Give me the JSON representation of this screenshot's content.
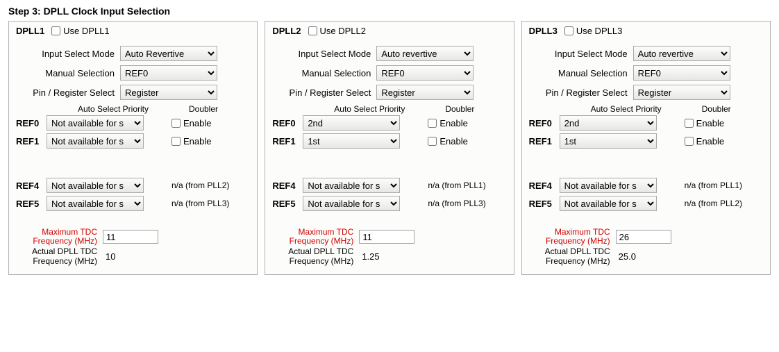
{
  "title": "Step 3: DPLL Clock Input Selection",
  "labels": {
    "input_select_mode": "Input Select Mode",
    "manual_selection": "Manual Selection",
    "pin_register_select": "Pin / Register Select",
    "auto_select_priority": "Auto Select Priority",
    "doubler": "Doubler",
    "enable": "Enable",
    "max_tdc_label": "Maximum TDC Frequency (MHz)",
    "actual_tdc_label": "Actual DPLL TDC Frequency (MHz)"
  },
  "panels": [
    {
      "name": "DPLL1",
      "use_label": "Use DPLL1",
      "use_checked": false,
      "input_select_mode": "Auto Revertive",
      "manual_selection": "REF0",
      "pin_register_select": "Register",
      "refs": [
        {
          "label": "REF0",
          "priority": "Not available for s",
          "doubler_enable": true
        },
        {
          "label": "REF1",
          "priority": "Not available for s",
          "doubler_enable": true
        }
      ],
      "refs2": [
        {
          "label": "REF4",
          "priority": "Not available for s",
          "na": "n/a (from PLL2)"
        },
        {
          "label": "REF5",
          "priority": "Not available for s",
          "na": "n/a (from PLL3)"
        }
      ],
      "max_tdc": "11",
      "actual_tdc": "10"
    },
    {
      "name": "DPLL2",
      "use_label": "Use DPLL2",
      "use_checked": false,
      "input_select_mode": "Auto revertive",
      "manual_selection": "REF0",
      "pin_register_select": "Register",
      "refs": [
        {
          "label": "REF0",
          "priority": "2nd",
          "doubler_enable": true
        },
        {
          "label": "REF1",
          "priority": "1st",
          "doubler_enable": true
        }
      ],
      "refs2": [
        {
          "label": "REF4",
          "priority": "Not available for s",
          "na": "n/a (from PLL1)"
        },
        {
          "label": "REF5",
          "priority": "Not available for s",
          "na": "n/a (from PLL3)"
        }
      ],
      "max_tdc": "11",
      "actual_tdc": "1.25"
    },
    {
      "name": "DPLL3",
      "use_label": "Use DPLL3",
      "use_checked": false,
      "input_select_mode": "Auto revertive",
      "manual_selection": "REF0",
      "pin_register_select": "Register",
      "refs": [
        {
          "label": "REF0",
          "priority": "2nd",
          "doubler_enable": true
        },
        {
          "label": "REF1",
          "priority": "1st",
          "doubler_enable": true
        }
      ],
      "refs2": [
        {
          "label": "REF4",
          "priority": "Not available for s",
          "na": "n/a (from PLL1)"
        },
        {
          "label": "REF5",
          "priority": "Not available for s",
          "na": "n/a (from PLL2)"
        }
      ],
      "max_tdc": "26",
      "actual_tdc": "25.0"
    }
  ],
  "colors": {
    "panel_border": "#b0b0b0",
    "panel_bg": "#fcfcfa",
    "label_red": "#d00000"
  }
}
